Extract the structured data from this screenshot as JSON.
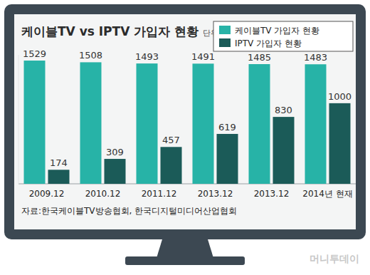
{
  "chart_data": {
    "type": "bar",
    "title": "케이블TV vs IPTV 가입자 현황",
    "subtitle": "단위:만명",
    "source": "자료:한국케이블TV방송협회, 한국디지털미디어산업협회",
    "watermark": "머니투데이",
    "categories": [
      "2009.12",
      "2010.12",
      "2011.12",
      "2013.12",
      "2013.12",
      "2014년 현재"
    ],
    "series": [
      {
        "name": "케이블TV 가입자 현황",
        "color": "#27b3a7",
        "values": [
          1529,
          1508,
          1493,
          1491,
          1485,
          1483
        ]
      },
      {
        "name": "IPTV 가입자 현황",
        "color": "#1b5b58",
        "values": [
          174,
          309,
          457,
          619,
          830,
          1000
        ]
      }
    ],
    "ylim": [
      0,
      1600
    ],
    "yticks": [],
    "grid": false,
    "legend": "top-right",
    "data_labels": true,
    "tick_labels": "x"
  }
}
